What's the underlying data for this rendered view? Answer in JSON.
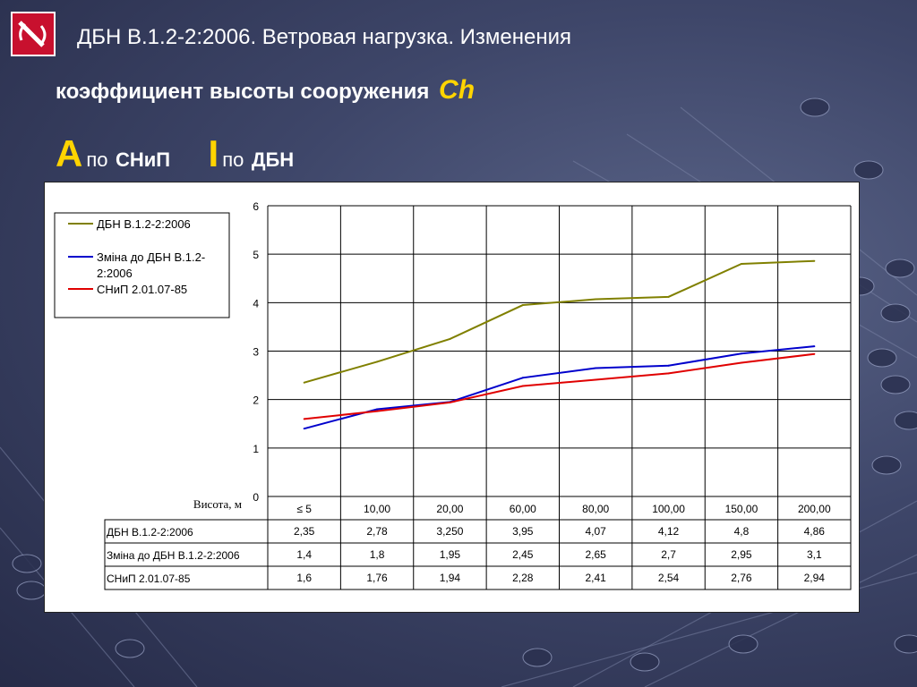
{
  "slide": {
    "title": "ДБН В.1.2-2:2006. Ветровая нагрузка. Изменения",
    "subtitle": "коэффициент высоты сооружения",
    "subtitle_symbol": "Ch",
    "label_a_letter": "А",
    "label_a_text": "по",
    "label_a_doc": "СНиП",
    "label_b_letter": "І",
    "label_b_text": "по",
    "label_b_doc": "ДБН"
  },
  "chart_data": {
    "type": "line",
    "categories": [
      "≤ 5",
      "10,00",
      "20,00",
      "60,00",
      "80,00",
      "100,00",
      "150,00",
      "200,00"
    ],
    "xlabel": "Висота, м",
    "ylabel": "",
    "ylim": [
      0,
      6
    ],
    "yticks": [
      0,
      1,
      2,
      3,
      4,
      5,
      6
    ],
    "grid": true,
    "legend_position": "top-left",
    "series": [
      {
        "name": "ДБН В.1.2-2:2006",
        "color": "#808000",
        "values": [
          2.35,
          2.78,
          3.25,
          3.95,
          4.07,
          4.12,
          4.8,
          4.86
        ],
        "table_values": [
          "2,35",
          "2,78",
          "3,250",
          "3,95",
          "4,07",
          "4,12",
          "4,8",
          "4,86"
        ]
      },
      {
        "name": "Зміна до ДБН В.1.2-2:2006",
        "color": "#0000cc",
        "values": [
          1.4,
          1.8,
          1.95,
          2.45,
          2.65,
          2.7,
          2.95,
          3.1
        ],
        "table_values": [
          "1,4",
          "1,8",
          "1,95",
          "2,45",
          "2,65",
          "2,7",
          "2,95",
          "3,1"
        ]
      },
      {
        "name": "СНиП 2.01.07-85",
        "color": "#e00000",
        "values": [
          1.6,
          1.76,
          1.94,
          2.28,
          2.41,
          2.54,
          2.76,
          2.94
        ],
        "table_values": [
          "1,6",
          "1,76",
          "1,94",
          "2,28",
          "2,41",
          "2,54",
          "2,76",
          "2,94"
        ]
      }
    ]
  }
}
